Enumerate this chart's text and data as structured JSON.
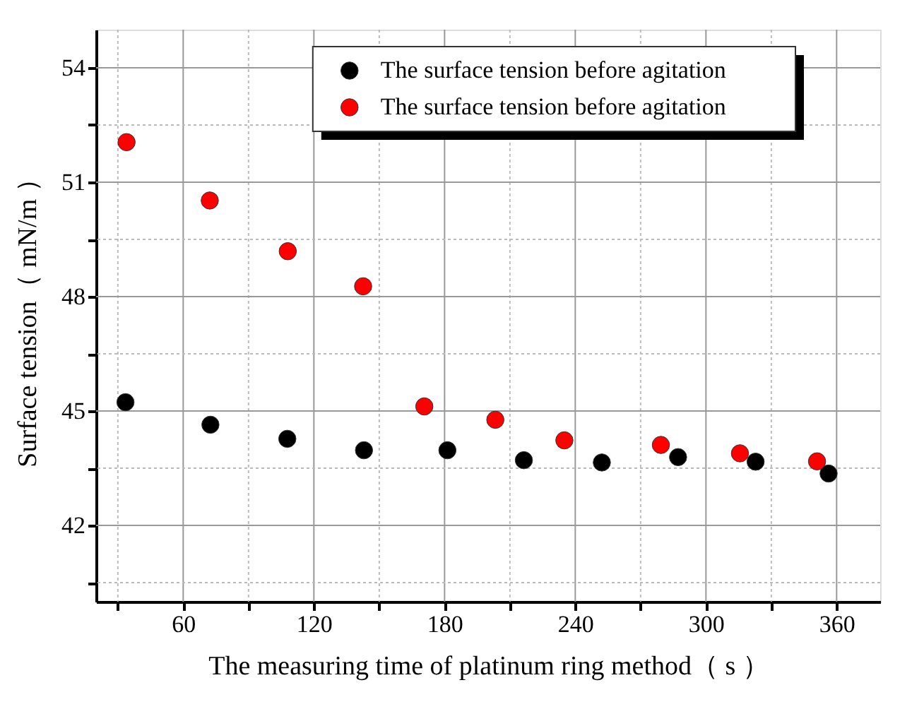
{
  "chart_data": {
    "type": "scatter",
    "xlabel": "The measuring time of platinum ring method（ s ）",
    "ylabel": "Surface tension（ mN/m ）",
    "xlim": [
      20,
      380
    ],
    "ylim": [
      40,
      55
    ],
    "xticks": [
      {
        "value": 30,
        "label": null
      },
      60,
      {
        "value": 90,
        "label": null
      },
      120,
      {
        "value": 150,
        "label": null
      },
      180,
      {
        "value": 210,
        "label": null
      },
      240,
      {
        "value": 270,
        "label": null
      },
      300,
      {
        "value": 330,
        "label": null
      },
      360
    ],
    "yticks": [
      {
        "value": 40.5,
        "label": null
      },
      42,
      {
        "value": 43.5,
        "label": null
      },
      45,
      {
        "value": 46.5,
        "label": null
      },
      48,
      {
        "value": 49.5,
        "label": null
      },
      51,
      {
        "value": 52.5,
        "label": null
      },
      54
    ],
    "grid": true,
    "legend": "top right",
    "marker": "circle",
    "series": [
      {
        "name": "The surface tension before agitation",
        "color": "#000000",
        "x": [
          33.5,
          72.5,
          107.8,
          143,
          181.3,
          216.4,
          252.2,
          287.2,
          322.8,
          356.3
        ],
        "values": [
          45.23,
          44.64,
          44.27,
          43.97,
          43.97,
          43.71,
          43.65,
          43.79,
          43.67,
          43.36
        ]
      },
      {
        "name": "The surface tension before agitation",
        "color": "#ff0000",
        "x": [
          34,
          72.2,
          108,
          142.6,
          170.7,
          203.3,
          235,
          279.3,
          315.6,
          351
        ],
        "values": [
          52.05,
          50.52,
          49.19,
          48.27,
          45.12,
          44.77,
          44.23,
          44.11,
          43.89,
          43.68
        ]
      }
    ]
  }
}
